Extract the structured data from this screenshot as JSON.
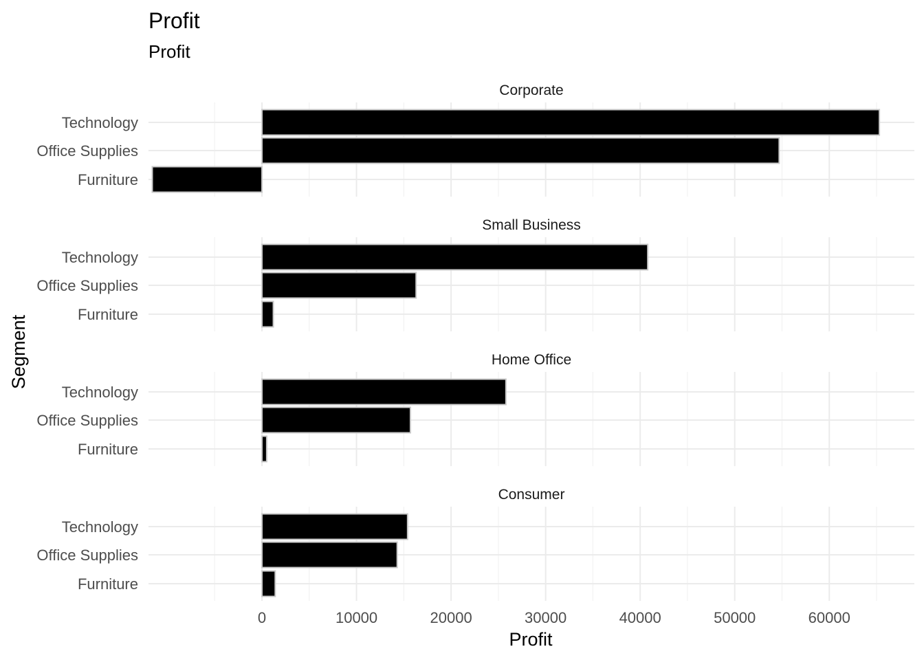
{
  "chart_data": {
    "type": "bar",
    "orientation": "horizontal",
    "facet": "wrap",
    "title": "Profit",
    "subtitle": "Profit",
    "xlabel": "Profit",
    "ylabel": "Segment",
    "xlim": [
      -12000,
      69000
    ],
    "x_ticks": [
      0,
      10000,
      20000,
      30000,
      40000,
      50000,
      60000
    ],
    "categories": [
      "Technology",
      "Office Supplies",
      "Furniture"
    ],
    "grid": true,
    "bar_fill": "#000000",
    "bar_outline": "#c8c8c8",
    "panels": [
      {
        "name": "Corporate",
        "values": [
          65300,
          54700,
          -11600
        ]
      },
      {
        "name": "Small Business",
        "values": [
          40800,
          16300,
          1200
        ]
      },
      {
        "name": "Home Office",
        "values": [
          25800,
          15700,
          500
        ]
      },
      {
        "name": "Consumer",
        "values": [
          15400,
          14300,
          1400
        ]
      }
    ]
  }
}
